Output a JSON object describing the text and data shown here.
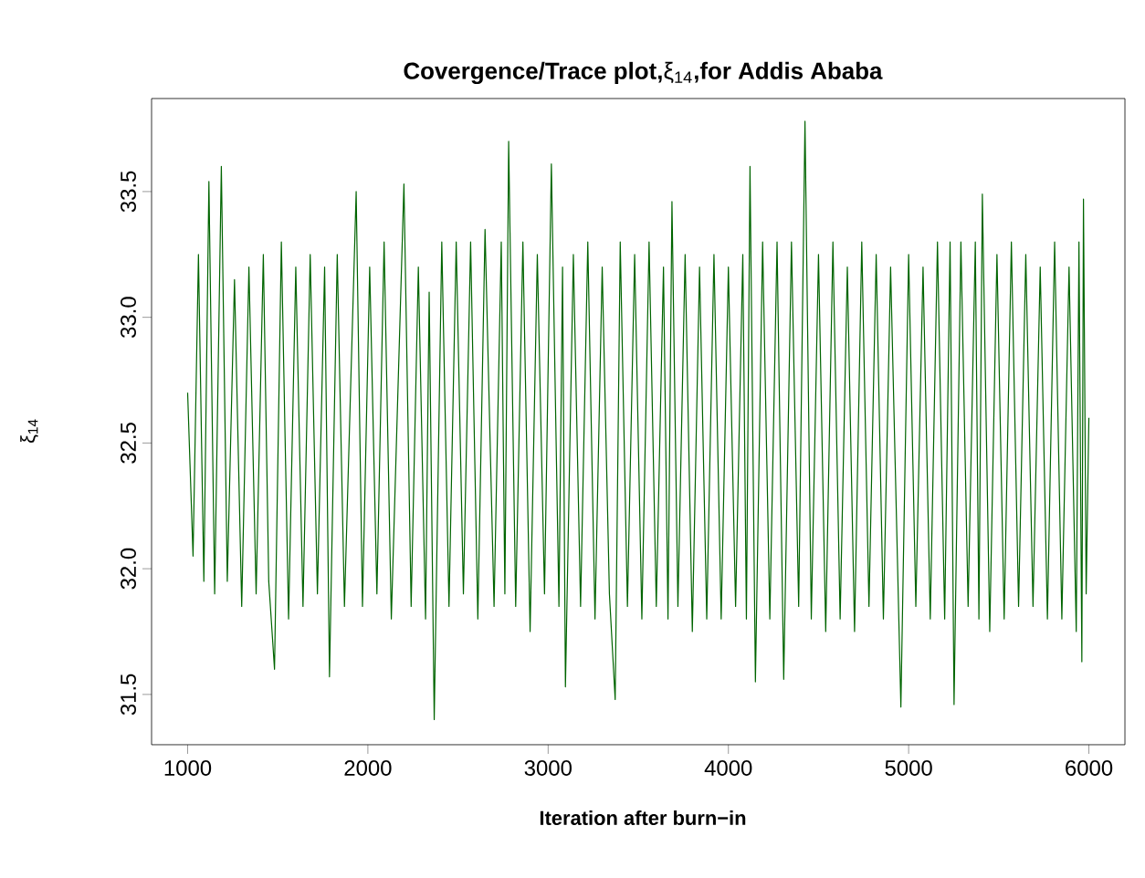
{
  "chart_data": {
    "type": "line",
    "title": "**Covergence/Trace plot,**ξ$_{14}$**,for Addis Ababa**",
    "xlabel": "Iteration after burn−in",
    "ylabel": "ξ$_{14}$",
    "color": "#006400",
    "xlim": [
      800,
      6200
    ],
    "ylim": [
      31.3,
      33.87
    ],
    "xticks": [
      1000,
      2000,
      3000,
      4000,
      5000,
      6000
    ],
    "yticks": [
      {
        "value": 31.5,
        "label": "31.5"
      },
      {
        "value": 32,
        "label": "32.0"
      },
      {
        "value": 32.5,
        "label": "32.5"
      },
      {
        "value": 33,
        "label": "33.0"
      },
      {
        "value": 33.5,
        "label": "33.5"
      }
    ],
    "x": [
      1000,
      1030,
      1060,
      1090,
      1118,
      1150,
      1187,
      1220,
      1260,
      1300,
      1340,
      1380,
      1420,
      1450,
      1482,
      1520,
      1560,
      1600,
      1640,
      1680,
      1720,
      1760,
      1787,
      1830,
      1870,
      1935,
      1970,
      2010,
      2050,
      2090,
      2130,
      2200,
      2240,
      2280,
      2320,
      2340,
      2368,
      2410,
      2450,
      2490,
      2530,
      2570,
      2610,
      2650,
      2700,
      2740,
      2760,
      2781,
      2820,
      2860,
      2900,
      2940,
      2980,
      3018,
      3060,
      3080,
      3096,
      3140,
      3180,
      3220,
      3260,
      3300,
      3340,
      3372,
      3400,
      3440,
      3480,
      3520,
      3560,
      3600,
      3640,
      3665,
      3687,
      3720,
      3760,
      3800,
      3840,
      3880,
      3920,
      3960,
      4000,
      4040,
      4080,
      4100,
      4120,
      4150,
      4190,
      4230,
      4270,
      4307,
      4350,
      4390,
      4425,
      4460,
      4500,
      4540,
      4580,
      4620,
      4660,
      4700,
      4740,
      4780,
      4820,
      4860,
      4900,
      4957,
      5000,
      5040,
      5080,
      5120,
      5160,
      5200,
      5230,
      5252,
      5290,
      5330,
      5370,
      5390,
      5409,
      5450,
      5490,
      5530,
      5570,
      5610,
      5650,
      5690,
      5730,
      5770,
      5810,
      5850,
      5890,
      5930,
      5945,
      5961,
      5970,
      5985,
      6000
    ],
    "values": [
      32.7,
      32.05,
      33.25,
      31.95,
      33.54,
      31.9,
      33.6,
      31.95,
      33.15,
      31.85,
      33.2,
      31.9,
      33.25,
      31.95,
      31.6,
      33.3,
      31.8,
      33.2,
      31.85,
      33.25,
      31.9,
      33.2,
      31.57,
      33.25,
      31.85,
      33.5,
      31.85,
      33.2,
      31.9,
      33.3,
      31.8,
      33.53,
      31.85,
      33.2,
      31.8,
      33.1,
      31.4,
      33.3,
      31.85,
      33.3,
      31.9,
      33.3,
      31.8,
      33.35,
      31.85,
      33.3,
      31.9,
      33.7,
      31.85,
      33.3,
      31.75,
      33.25,
      31.9,
      33.61,
      31.85,
      33.2,
      31.53,
      33.25,
      31.85,
      33.3,
      31.8,
      33.2,
      31.9,
      31.48,
      33.3,
      31.85,
      33.25,
      31.8,
      33.3,
      31.85,
      33.2,
      31.8,
      33.46,
      31.85,
      33.25,
      31.75,
      33.2,
      31.8,
      33.25,
      31.8,
      33.2,
      31.85,
      33.25,
      31.8,
      33.6,
      31.55,
      33.3,
      31.8,
      33.3,
      31.56,
      33.3,
      31.85,
      33.78,
      31.8,
      33.25,
      31.75,
      33.3,
      31.8,
      33.2,
      31.75,
      33.3,
      31.85,
      33.25,
      31.8,
      33.2,
      31.45,
      33.25,
      31.85,
      33.2,
      31.8,
      33.3,
      31.8,
      33.3,
      31.46,
      33.3,
      31.85,
      33.3,
      31.8,
      33.49,
      31.75,
      33.25,
      31.8,
      33.3,
      31.85,
      33.25,
      31.85,
      33.2,
      31.8,
      33.3,
      31.8,
      33.2,
      31.75,
      33.3,
      31.63,
      33.47,
      31.9,
      32.6
    ]
  }
}
